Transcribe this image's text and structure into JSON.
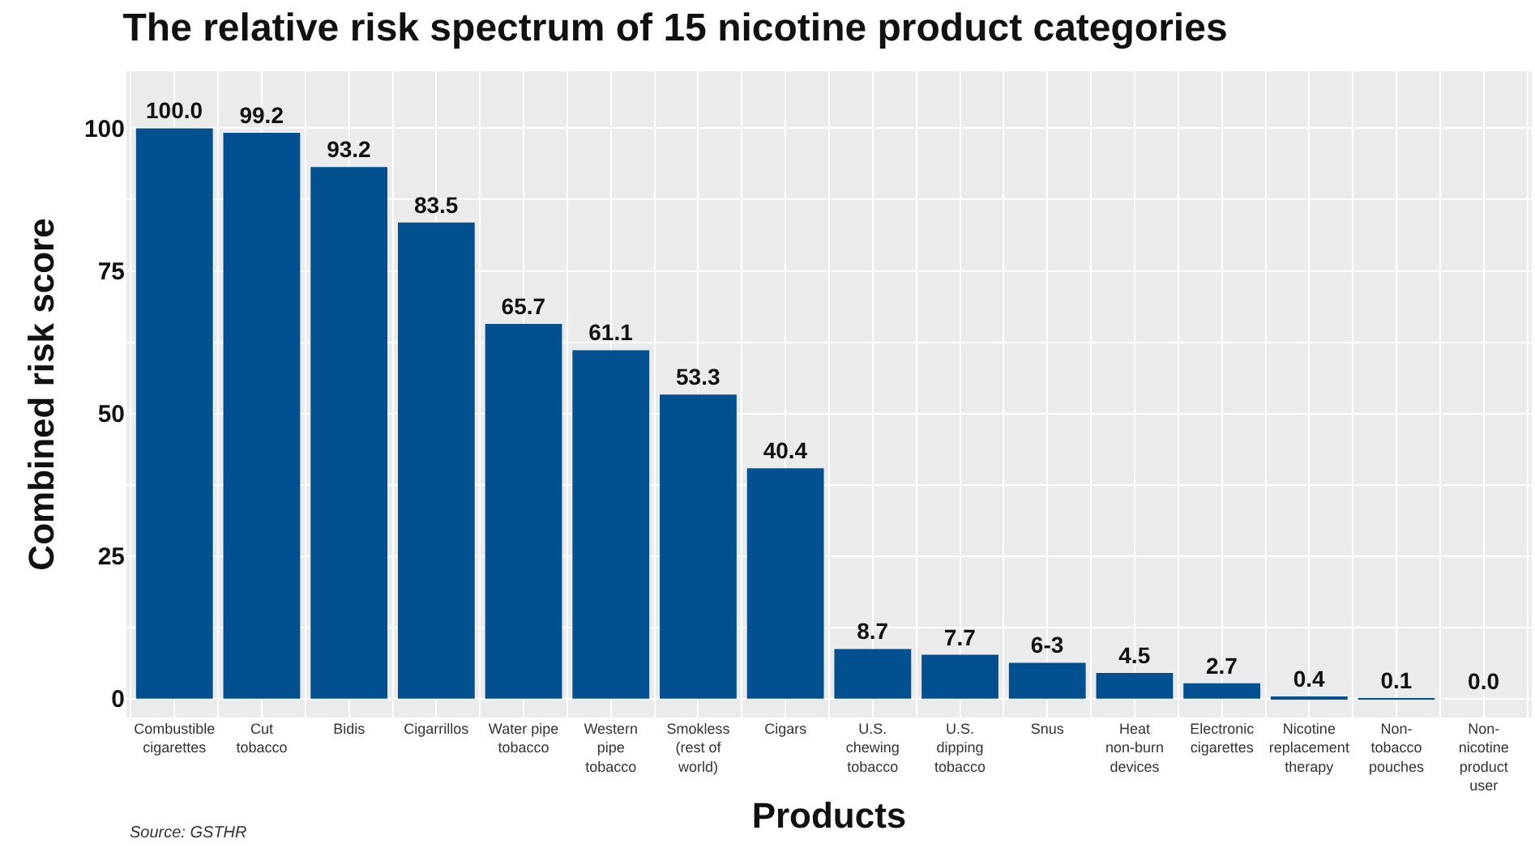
{
  "chart_data": {
    "type": "bar",
    "title": "The relative risk spectrum of 15 nicotine product categories",
    "xlabel": "Products",
    "ylabel": "Combined risk score",
    "categories": [
      "Combustible cigarettes",
      "Cut tobacco",
      "Bidis",
      "Cigarrillos",
      "Water pipe tobacco",
      "Western pipe tobacco",
      "Smokless (rest of world)",
      "Cigars",
      "U.S. chewing tobacco",
      "U.S. dipping tobacco",
      "Snus",
      "Heat non-burn devices",
      "Electronic cigarettes",
      "Nicotine replacement therapy",
      "Non-tobacco pouches",
      "Non-nicotine product user"
    ],
    "values": [
      100.0,
      99.2,
      93.2,
      83.5,
      65.7,
      61.1,
      53.3,
      40.4,
      8.7,
      7.7,
      6.3,
      4.5,
      2.7,
      0.4,
      0.1,
      0.0
    ],
    "value_labels": [
      "100.0",
      "99.2",
      "93.2",
      "83.5",
      "65.7",
      "61.1",
      "53.3",
      "40.4",
      "8.7",
      "7.7",
      "6-3",
      "4.5",
      "2.7",
      "0.4",
      "0.1",
      "0.0"
    ],
    "color": "#02508f",
    "ylim": [
      -3.3,
      110
    ],
    "yticks": [
      0,
      25,
      50,
      75,
      100
    ],
    "grid": true,
    "annotations": [
      "Source: GSTHR"
    ]
  }
}
